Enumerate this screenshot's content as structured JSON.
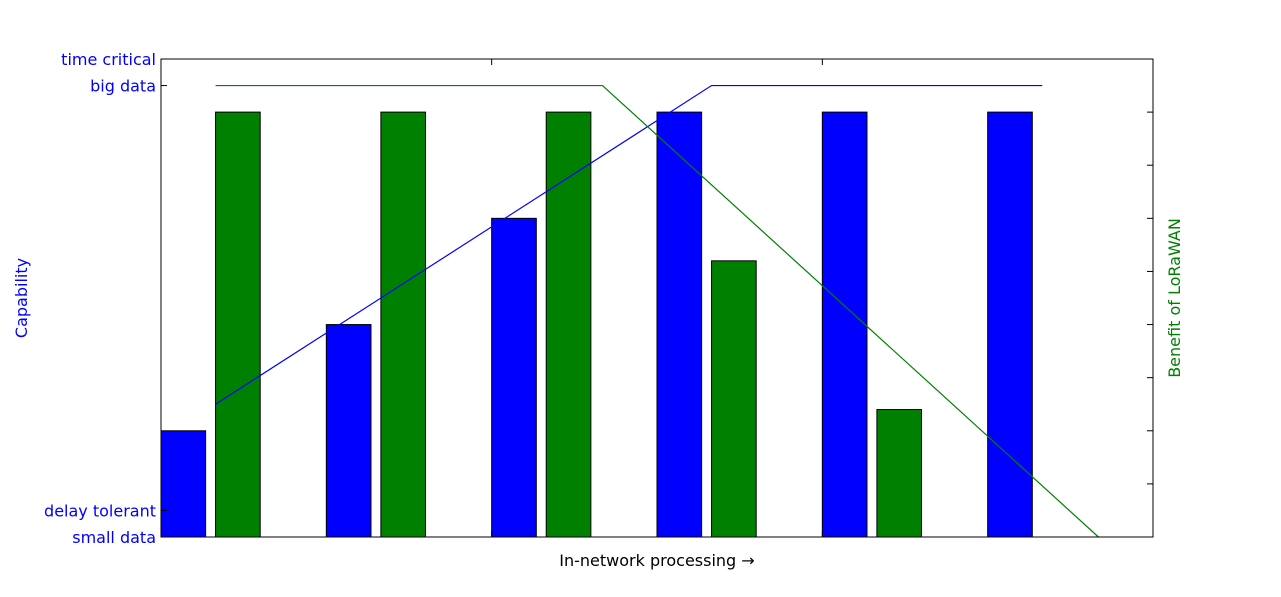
{
  "chart_data": {
    "type": "bar",
    "xlabel": "In-network processing  →",
    "ylabel_left": "Capability",
    "ylabel_right": "Benefit of LoRaWAN",
    "left_axis_color": "#0000ff",
    "right_axis_color": "#008000",
    "ylim": [
      0,
      9
    ],
    "y_tick_labels": [
      {
        "value": 0,
        "label": "small data"
      },
      {
        "value": 0.5,
        "label": "delay tolerant"
      },
      {
        "value": 8.5,
        "label": "big data"
      },
      {
        "value": 9,
        "label": "time critical"
      }
    ],
    "xlim": [
      0,
      6
    ],
    "x_tick_values": [
      2,
      4
    ],
    "right_axis_ticks": [
      0,
      1,
      2,
      3,
      4,
      5,
      6,
      7,
      8
    ],
    "bar_width": 0.27,
    "categories": [
      "1",
      "2",
      "3",
      "4",
      "5",
      "6"
    ],
    "series": [
      {
        "color": "#0000ff",
        "values": [
          2,
          4,
          6,
          8,
          8,
          8
        ],
        "offset": 0.0
      },
      {
        "color": "#008000",
        "values": [
          8,
          8,
          8,
          5.2,
          2.4,
          0
        ],
        "offset": 0.33
      }
    ],
    "lines": [
      {
        "color": "#0000ff",
        "x": [
          0.33,
          3.33,
          5.33
        ],
        "y": [
          2.5,
          8.5,
          8.5
        ]
      },
      {
        "color": "#008000",
        "x": [
          0.33,
          2.67,
          5.67
        ],
        "y": [
          8.5,
          8.5,
          0
        ]
      }
    ]
  }
}
